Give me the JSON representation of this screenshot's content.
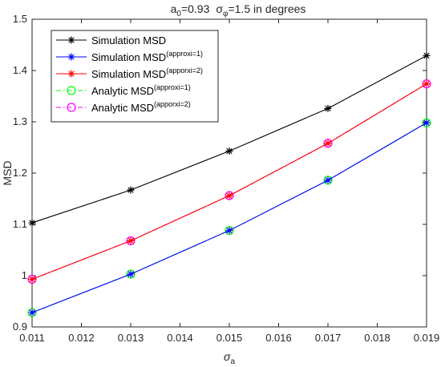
{
  "chart_data": {
    "type": "line",
    "title": {
      "a_sym": "a",
      "a_sub": "0",
      "a_val": "=0.93",
      "s_sym": "σ",
      "s_sub": "φ",
      "s_val": "=1.5 in degrees"
    },
    "xlabel": {
      "sym": "σ",
      "sub": "a"
    },
    "ylabel": "MSD",
    "xlim": [
      0.011,
      0.019
    ],
    "ylim": [
      0.9,
      1.5
    ],
    "x_ticks": [
      "0.011",
      "0.012",
      "0.013",
      "0.014",
      "0.015",
      "0.016",
      "0.017",
      "0.018",
      "0.019"
    ],
    "y_ticks": [
      "0.9",
      "1",
      "1.1",
      "1.2",
      "1.3",
      "1.4",
      "1.5"
    ],
    "x": [
      0.011,
      0.013,
      0.015,
      0.017,
      0.019
    ],
    "grid": false,
    "legend_position": "top-left",
    "series": [
      {
        "name": "Simulation MSD",
        "sup": "",
        "values": [
          1.103,
          1.167,
          1.243,
          1.326,
          1.429
        ],
        "color": "#000000",
        "marker": "star",
        "dash": "solid"
      },
      {
        "name": "Simulation MSD",
        "sup": "(approxi=1)",
        "values": [
          0.928,
          1.003,
          1.088,
          1.186,
          1.298
        ],
        "color": "#0000ff",
        "marker": "star",
        "dash": "solid"
      },
      {
        "name": "Simulation MSD",
        "sup": "(apporxi=2)",
        "values": [
          0.993,
          1.068,
          1.156,
          1.258,
          1.374
        ],
        "color": "#ff0000",
        "marker": "star",
        "dash": "solid"
      },
      {
        "name": "Analytic  MSD",
        "sup": "(approxi=1)",
        "values": [
          0.928,
          1.003,
          1.088,
          1.186,
          1.298
        ],
        "color": "#00ff00",
        "marker": "circle",
        "dash": "dashdot"
      },
      {
        "name": "Analytic  MSD",
        "sup": "(apporxi=2)",
        "values": [
          0.993,
          1.068,
          1.156,
          1.258,
          1.374
        ],
        "color": "#ff00ff",
        "marker": "circle",
        "dash": "dashdot"
      }
    ]
  }
}
